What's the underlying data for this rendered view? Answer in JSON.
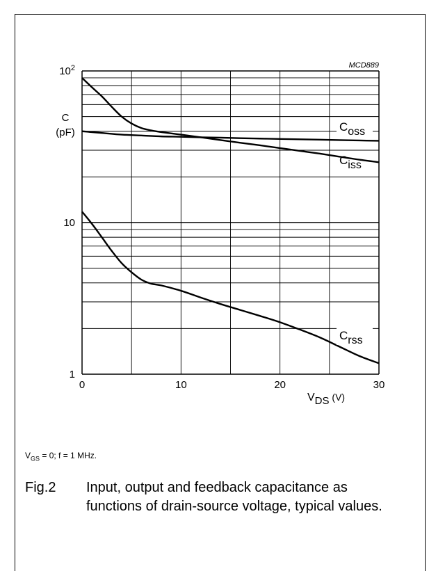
{
  "chart_data": {
    "type": "line",
    "code": "MCD889",
    "ylabel": "C",
    "yunit": "(pF)",
    "xlabel_main": "V",
    "xlabel_sub": "DS",
    "xlabel_unit": "(V)",
    "xlim": [
      0,
      30
    ],
    "ylim": [
      1,
      100
    ],
    "yscale": "log",
    "x_ticks": [
      "0",
      "10",
      "20",
      "30"
    ],
    "y_ticks": [
      {
        "main": "1",
        "sup": ""
      },
      {
        "main": "10",
        "sup": ""
      },
      {
        "main": "10",
        "sup": "2"
      }
    ],
    "grid": true,
    "series": [
      {
        "name": "C",
        "sub": "oss",
        "x": [
          0,
          2,
          4,
          6,
          8,
          10,
          12,
          14,
          16,
          18,
          20,
          22,
          24,
          26,
          28,
          30
        ],
        "values": [
          40,
          39,
          38,
          37.5,
          37,
          36.8,
          36.5,
          36.3,
          36,
          35.8,
          35.6,
          35.4,
          35.2,
          35,
          34.8,
          34.6
        ]
      },
      {
        "name": "C",
        "sub": "iss",
        "x": [
          0,
          1,
          2,
          3,
          4,
          5,
          6,
          7,
          8,
          10,
          12,
          14,
          16,
          18,
          20,
          22,
          24,
          26,
          28,
          30
        ],
        "values": [
          90,
          78,
          68,
          58,
          50,
          45,
          42,
          40.5,
          39.5,
          38,
          36.5,
          35,
          33.6,
          32.3,
          31,
          29.7,
          28.5,
          27.2,
          26,
          25
        ]
      },
      {
        "name": "C",
        "sub": "rss",
        "x": [
          0,
          1,
          2,
          3,
          4,
          5,
          6,
          7,
          8,
          10,
          12,
          14,
          16,
          18,
          20,
          22,
          24,
          26,
          28,
          30
        ],
        "values": [
          11.8,
          9.8,
          8,
          6.5,
          5.4,
          4.7,
          4.2,
          3.95,
          3.85,
          3.55,
          3.2,
          2.9,
          2.65,
          2.42,
          2.2,
          1.97,
          1.75,
          1.52,
          1.32,
          1.18
        ]
      }
    ]
  },
  "conditions": {
    "v": "V",
    "sub": "GS",
    "rest": " = 0; f = 1 MHz."
  },
  "caption": {
    "fig": "Fig.2",
    "text": "Input, output and feedback capacitance as functions of drain-source voltage, typical values."
  }
}
